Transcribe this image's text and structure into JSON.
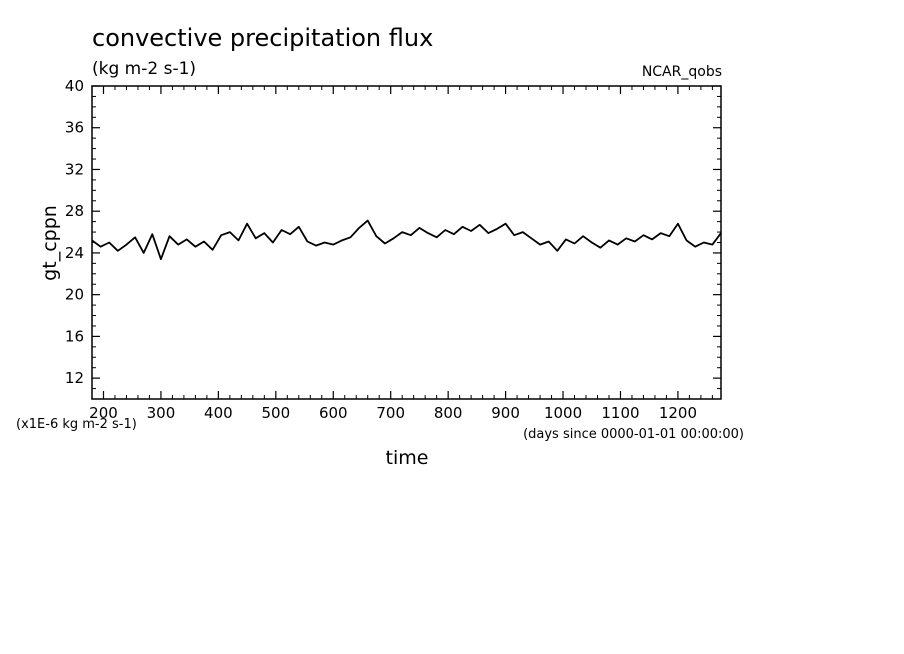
{
  "chart_data": {
    "type": "line",
    "title": "convective precipitation flux",
    "units": "(kg m-2 s-1)",
    "source_label": "NCAR_qobs",
    "xlabel": "time",
    "xunits": "(days since 0000-01-01 00:00:00)",
    "ylabel": "gt_cppn",
    "yscale_note": "(x1E-6 kg m-2 s-1)",
    "xlim": [
      180,
      1275
    ],
    "ylim": [
      10,
      40
    ],
    "x_ticks": [
      200,
      300,
      400,
      500,
      600,
      700,
      800,
      900,
      1000,
      1100,
      1200
    ],
    "y_ticks": [
      12,
      16,
      20,
      24,
      28,
      32,
      36,
      40
    ],
    "grid": false,
    "series": [
      {
        "x": [
          180,
          195,
          210,
          225,
          240,
          255,
          270,
          285,
          300,
          315,
          330,
          345,
          360,
          375,
          390,
          405,
          420,
          435,
          450,
          465,
          480,
          495,
          510,
          525,
          540,
          555,
          570,
          585,
          600,
          615,
          630,
          645,
          660,
          675,
          690,
          705,
          720,
          735,
          750,
          765,
          780,
          795,
          810,
          825,
          840,
          855,
          870,
          885,
          900,
          915,
          930,
          945,
          960,
          975,
          990,
          1005,
          1020,
          1035,
          1050,
          1065,
          1080,
          1095,
          1110,
          1125,
          1140,
          1155,
          1170,
          1185,
          1200,
          1215,
          1230,
          1245,
          1260,
          1275
        ],
        "y": [
          25.2,
          24.6,
          25.0,
          24.2,
          24.8,
          25.5,
          24.0,
          25.8,
          23.4,
          25.6,
          24.8,
          25.3,
          24.6,
          25.1,
          24.3,
          25.7,
          26.0,
          25.2,
          26.8,
          25.4,
          25.9,
          25.0,
          26.2,
          25.8,
          26.5,
          25.1,
          24.7,
          25.0,
          24.8,
          25.2,
          25.5,
          26.4,
          27.1,
          25.6,
          24.9,
          25.4,
          26.0,
          25.7,
          26.4,
          25.9,
          25.5,
          26.2,
          25.8,
          26.5,
          26.1,
          26.7,
          25.9,
          26.3,
          26.8,
          25.7,
          26.0,
          25.4,
          24.8,
          25.1,
          24.2,
          25.3,
          24.9,
          25.6,
          25.0,
          24.5,
          25.2,
          24.8,
          25.4,
          25.1,
          25.7,
          25.3,
          25.9,
          25.6,
          26.8,
          25.2,
          24.6,
          25.0,
          24.8,
          25.9
        ]
      }
    ]
  }
}
